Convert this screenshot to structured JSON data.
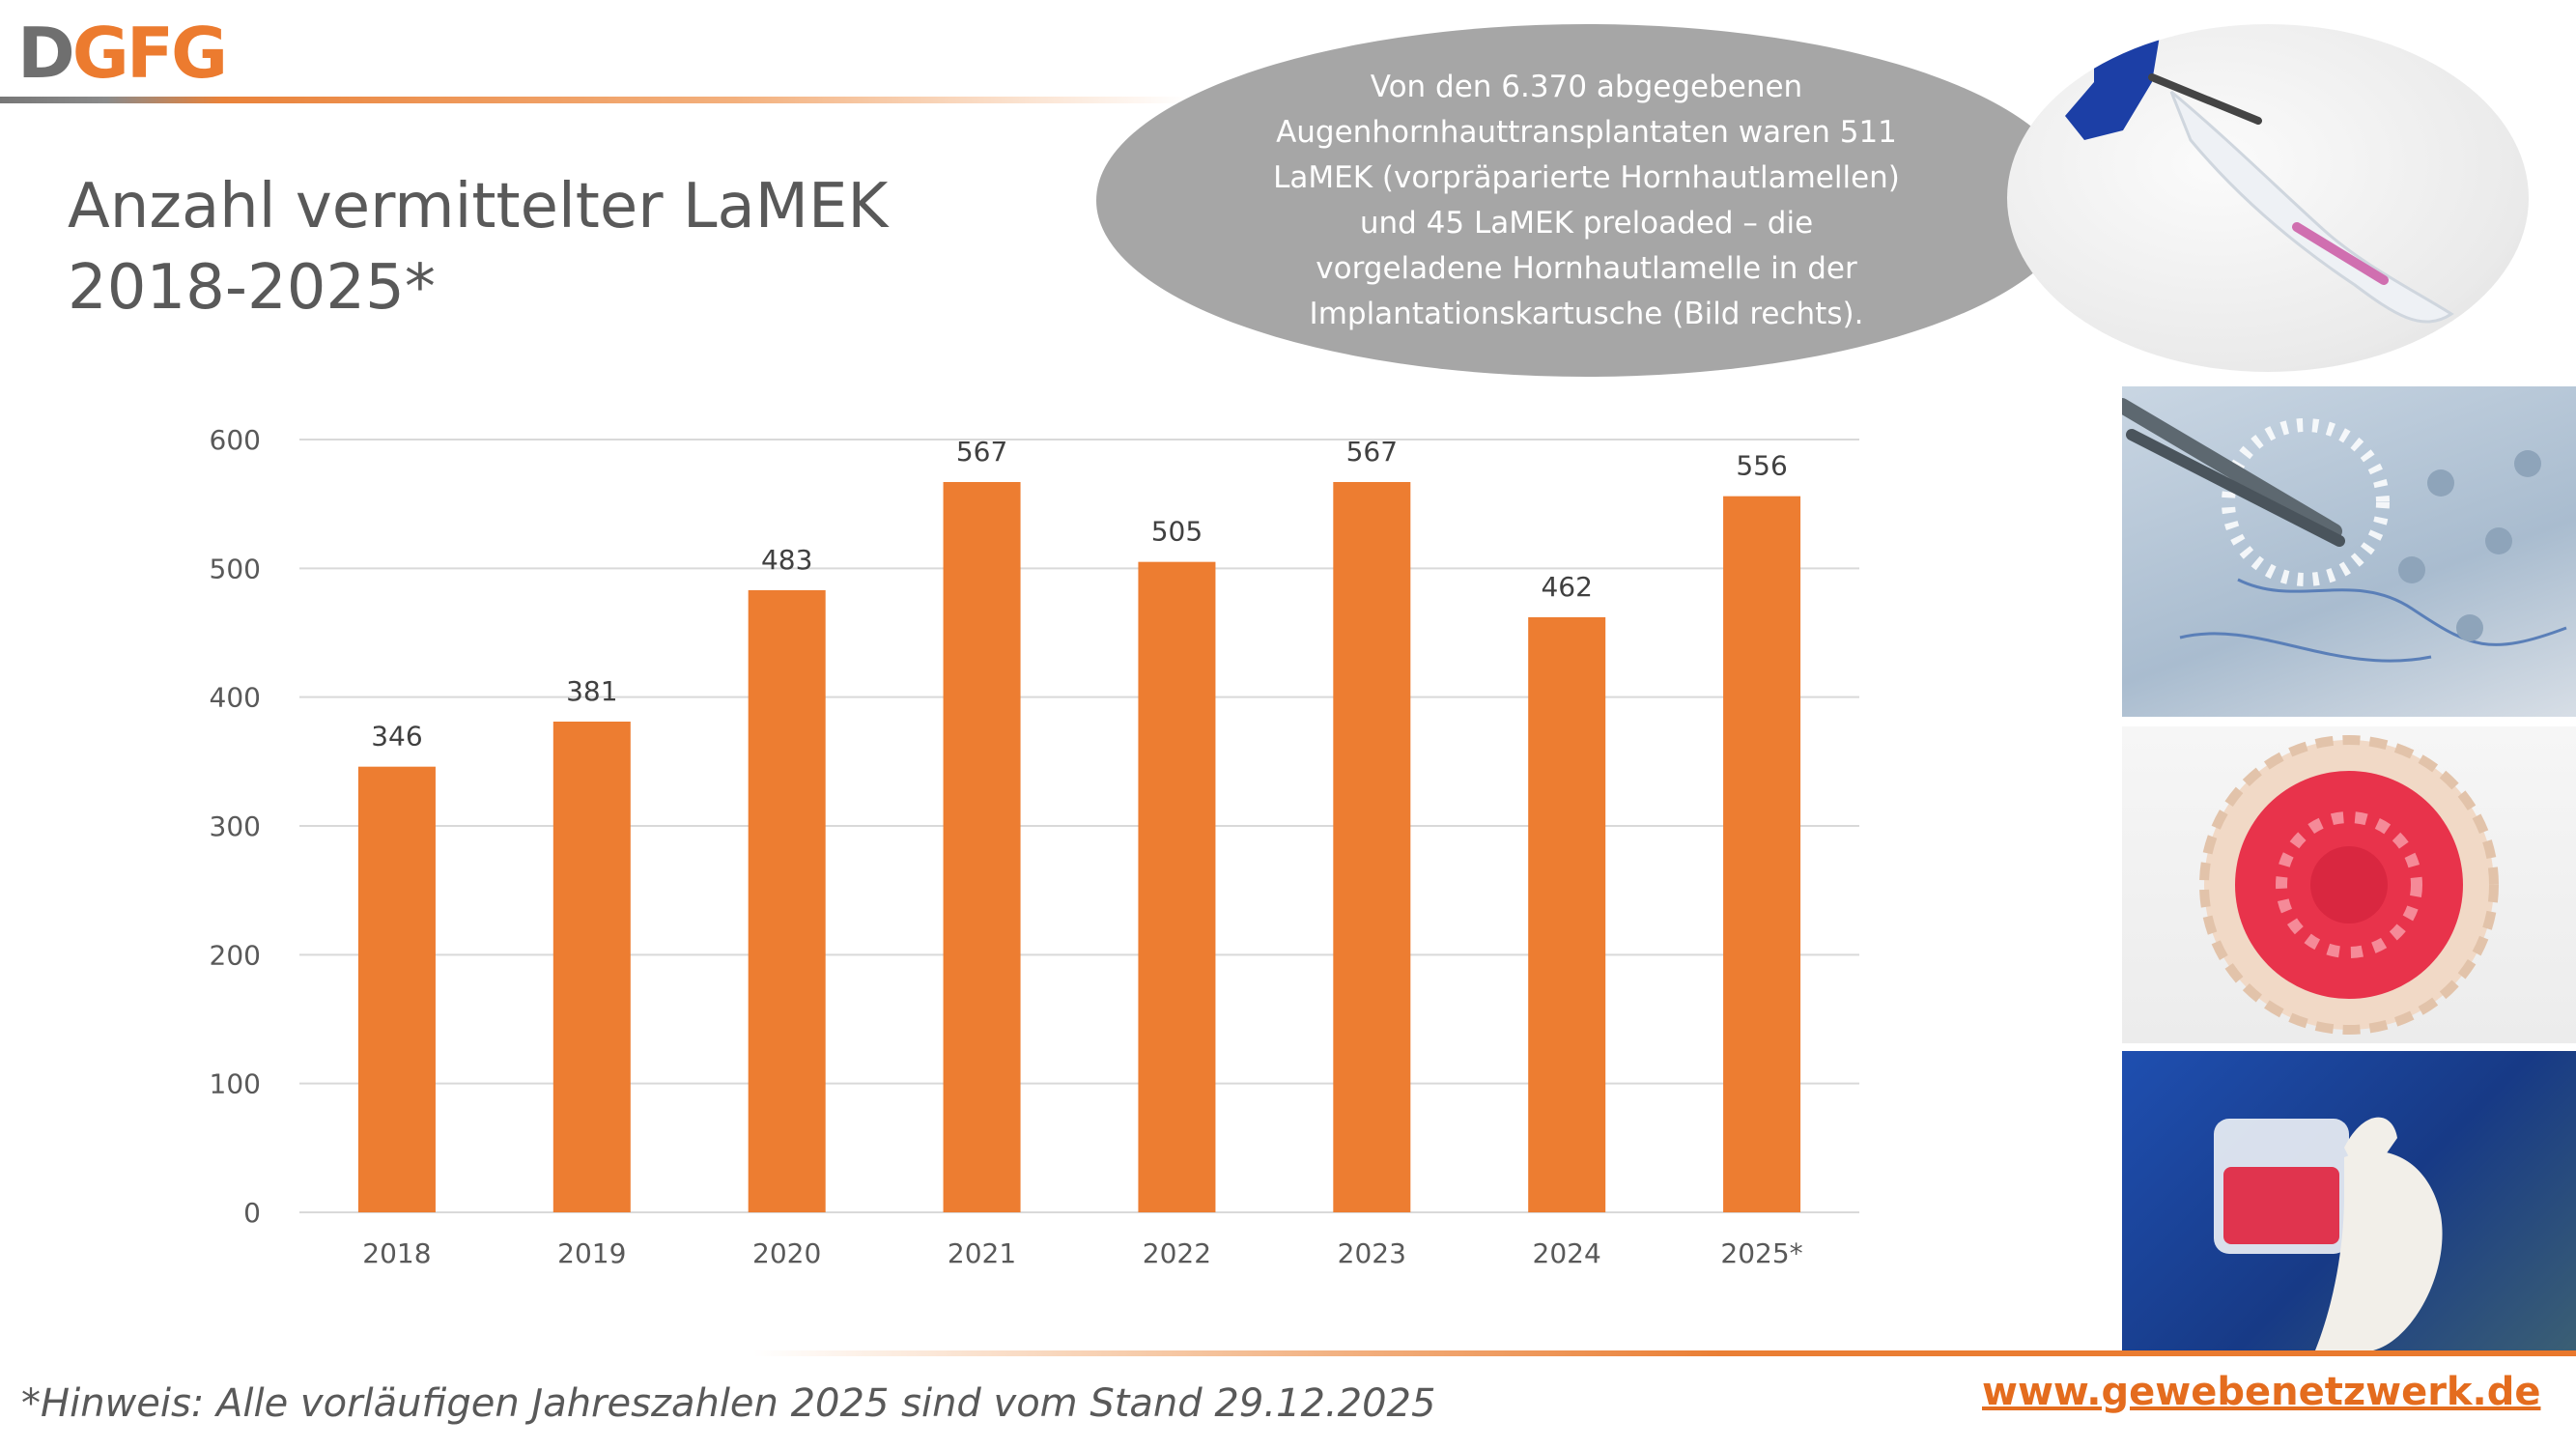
{
  "logo": {
    "part1": "D",
    "part2": "GFG"
  },
  "title": {
    "line1": "Anzahl vermittelter LaMEK",
    "line2": "2018-2025*"
  },
  "bubble": {
    "line1": "Von den 6.370 abgegebenen",
    "line2": "Augenhornhauttransplantaten waren 511",
    "line3": "LaMEK (vorpräparierte Hornhautlamellen)",
    "line4": "und 45 LaMEK preloaded – die",
    "line5": "vorgeladene Hornhautlamelle in der",
    "line6": "Implantationskartusche (Bild rechts)."
  },
  "footnote": "*Hinweis: Alle vorläufigen Jahreszahlen 2025 sind vom Stand 29.12.2025",
  "website": "www.gewebenetzwerk.de",
  "colors": {
    "bar": "#ed7d31",
    "accent": "#e46c1e",
    "grid": "#d9d9d9",
    "text": "#595959"
  },
  "chart_data": {
    "type": "bar",
    "categories": [
      "2018",
      "2019",
      "2020",
      "2021",
      "2022",
      "2023",
      "2024",
      "2025*"
    ],
    "values": [
      346,
      381,
      483,
      567,
      505,
      567,
      462,
      556
    ],
    "yticks": [
      0,
      100,
      200,
      300,
      400,
      500,
      600
    ],
    "ylim": [
      0,
      600
    ],
    "grid": true,
    "data_labels": true
  }
}
